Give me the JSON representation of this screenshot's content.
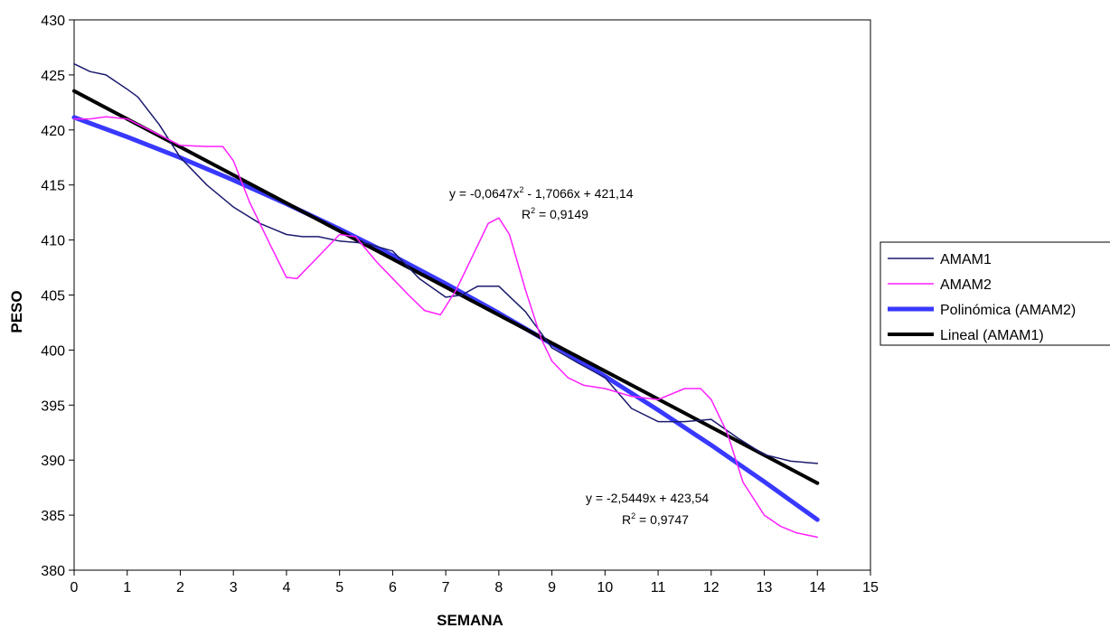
{
  "chart_data": {
    "type": "line",
    "xlabel": "SEMANA",
    "ylabel": "PESO",
    "xlim": [
      0,
      15
    ],
    "ylim": [
      380,
      430
    ],
    "xticks": [
      0,
      1,
      2,
      3,
      4,
      5,
      6,
      7,
      8,
      9,
      10,
      11,
      12,
      13,
      14,
      15
    ],
    "yticks": [
      380,
      385,
      390,
      395,
      400,
      405,
      410,
      415,
      420,
      425,
      430
    ],
    "grid": false,
    "legend_position": "right",
    "series": [
      {
        "name": "AMAM1",
        "color": "#1a1a6e",
        "x": [
          0,
          0.3,
          0.6,
          1,
          1.2,
          1.6,
          2,
          2.5,
          3,
          3.5,
          4,
          4.3,
          4.6,
          5,
          5.5,
          6,
          6.5,
          7,
          7.3,
          7.6,
          8,
          8.5,
          9,
          9.5,
          10,
          10.5,
          11,
          11.5,
          12,
          12.5,
          13,
          13.5,
          14
        ],
        "y": [
          426,
          425.3,
          425,
          423.7,
          423,
          420.5,
          417.5,
          415,
          413,
          411.5,
          410.5,
          410.3,
          410.3,
          409.9,
          409.7,
          409,
          406.5,
          404.8,
          405,
          405.8,
          405.8,
          403.5,
          400.2,
          398.8,
          397.5,
          394.7,
          393.5,
          393.5,
          393.7,
          392,
          390.5,
          389.9,
          389.7
        ]
      },
      {
        "name": "AMAM2",
        "color": "#ff20ff",
        "x": [
          0,
          0.3,
          0.6,
          1,
          1.5,
          2,
          2.5,
          2.8,
          3,
          3.3,
          3.7,
          4,
          4.2,
          4.5,
          5,
          5.3,
          5.7,
          6,
          6.3,
          6.6,
          6.9,
          7.2,
          7.5,
          7.8,
          8,
          8.2,
          8.5,
          8.8,
          9,
          9.3,
          9.6,
          10,
          10.5,
          11,
          11.5,
          11.8,
          12,
          12.3,
          12.6,
          13,
          13.3,
          13.6,
          14
        ],
        "y": [
          421,
          421,
          421.2,
          421,
          419.8,
          418.6,
          418.5,
          418.5,
          417.2,
          413.5,
          409.5,
          406.6,
          406.5,
          408,
          410.5,
          410.3,
          408,
          406.5,
          405,
          403.6,
          403.2,
          405.5,
          408.5,
          411.5,
          412,
          410.5,
          405.5,
          401,
          399,
          397.5,
          396.8,
          396.5,
          395.8,
          395.5,
          396.5,
          396.5,
          395.5,
          392.5,
          388,
          385,
          384,
          383.4,
          383
        ]
      },
      {
        "name": "Polinómica (AMAM2)",
        "color": "#3838ff",
        "x": [
          0,
          1,
          2,
          3,
          4,
          5,
          6,
          7,
          8,
          9,
          10,
          11,
          12,
          13,
          14
        ],
        "y": [
          421.14,
          419.37,
          417.47,
          415.44,
          413.28,
          410.99,
          408.58,
          406.03,
          403.36,
          400.55,
          397.62,
          394.55,
          391.36,
          388.04,
          384.59
        ]
      },
      {
        "name": "Lineal (AMAM1)",
        "color": "#000000",
        "x": [
          0,
          14
        ],
        "y": [
          423.54,
          387.91
        ]
      }
    ],
    "annotations": [
      {
        "line1": "y = -0,0647x",
        "sup1": "2",
        "line1b": " - 1,7066x + 421,14",
        "line2": "R",
        "sup2": "2",
        "line2b": " = 0,9149"
      },
      {
        "line1": "y = -2,5449x + 423,54",
        "line2": "R",
        "sup2": "2",
        "line2b": " = 0,9747"
      }
    ]
  }
}
